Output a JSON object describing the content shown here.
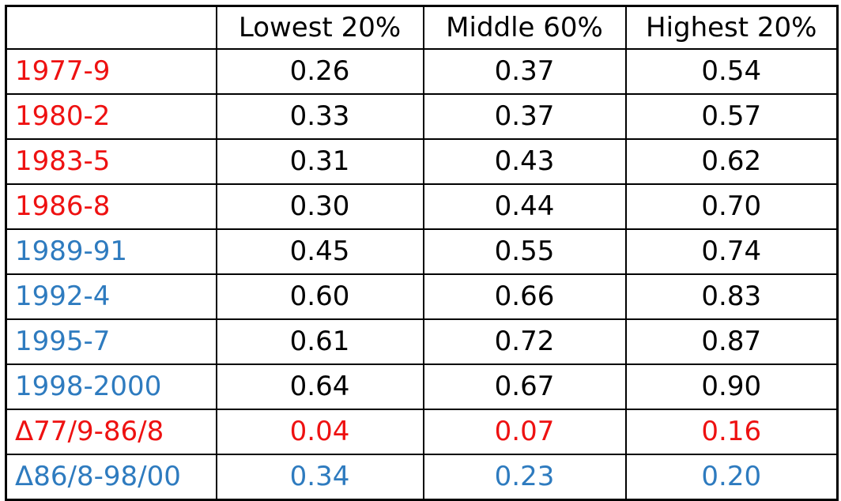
{
  "table": {
    "columns": [
      "",
      "Lowest 20%",
      "Middle 60%",
      "Highest 20%"
    ],
    "rows": [
      {
        "label": "1977-9",
        "values": [
          "0.26",
          "0.37",
          "0.54"
        ]
      },
      {
        "label": "1980-2",
        "values": [
          "0.33",
          "0.37",
          "0.57"
        ]
      },
      {
        "label": "1983-5",
        "values": [
          "0.31",
          "0.43",
          "0.62"
        ]
      },
      {
        "label": "1986-8",
        "values": [
          "0.30",
          "0.44",
          "0.70"
        ]
      },
      {
        "label": "1989-91",
        "values": [
          "0.45",
          "0.55",
          "0.74"
        ]
      },
      {
        "label": "1992-4",
        "values": [
          "0.60",
          "0.66",
          "0.83"
        ]
      },
      {
        "label": "1995-7",
        "values": [
          "0.61",
          "0.72",
          "0.87"
        ]
      },
      {
        "label": "1998-2000",
        "values": [
          "0.64",
          "0.67",
          "0.90"
        ]
      },
      {
        "label": "Δ77/9-86/8",
        "values": [
          "0.04",
          "0.07",
          "0.16"
        ]
      },
      {
        "label": "Δ86/8-98/00",
        "values": [
          "0.34",
          "0.23",
          "0.20"
        ]
      }
    ]
  },
  "colors": {
    "red": "#ee1111",
    "blue": "#2e7bbf",
    "text": "#000000",
    "border": "#000000"
  }
}
